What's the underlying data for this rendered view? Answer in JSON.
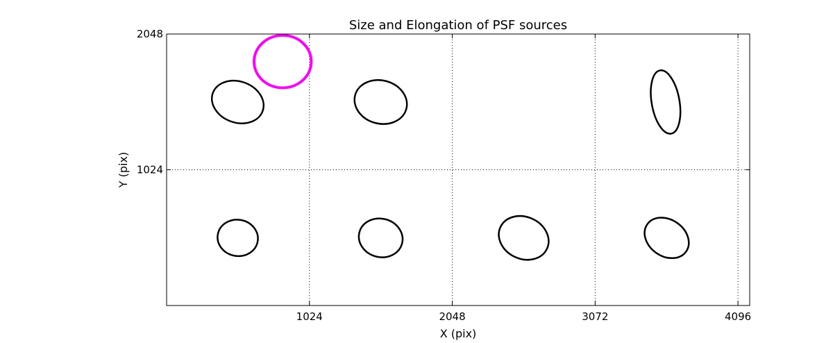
{
  "chart_data": {
    "type": "scatter",
    "title": "Size and Elongation of PSF sources",
    "xlabel": "X (pix)",
    "ylabel": "Y (pix)",
    "xlim": [
      0,
      4180
    ],
    "ylim": [
      0,
      2048
    ],
    "xticks": [
      1024,
      2048,
      3072,
      4096
    ],
    "yticks": [
      1024,
      2048
    ],
    "xtick_labels": [
      "1024",
      "2048",
      "3072",
      "4096"
    ],
    "ytick_labels": [
      "1024",
      "2048"
    ],
    "grid": true,
    "grid_style": "dotted",
    "series": [
      {
        "color": "#000000",
        "markers": [
          {
            "x": 510,
            "y": 1535,
            "semi_major": 190,
            "semi_minor": 155,
            "angle_deg": 20
          },
          {
            "x": 1535,
            "y": 1535,
            "semi_major": 190,
            "semi_minor": 163,
            "angle_deg": 15
          },
          {
            "x": 3577,
            "y": 1535,
            "semi_major": 230,
            "semi_minor": 105,
            "angle_deg": 80
          },
          {
            "x": 510,
            "y": 510,
            "semi_major": 145,
            "semi_minor": 137,
            "angle_deg": 10
          },
          {
            "x": 1535,
            "y": 510,
            "semi_major": 158,
            "semi_minor": 145,
            "angle_deg": 15
          },
          {
            "x": 2560,
            "y": 510,
            "semi_major": 184,
            "semi_minor": 158,
            "angle_deg": 25
          },
          {
            "x": 3585,
            "y": 510,
            "semi_major": 170,
            "semi_minor": 138,
            "angle_deg": 35
          }
        ]
      },
      {
        "color": "#ff00ff",
        "markers": [
          {
            "x": 832,
            "y": 1840,
            "semi_major": 205,
            "semi_minor": 198,
            "angle_deg": 0
          }
        ]
      }
    ]
  }
}
